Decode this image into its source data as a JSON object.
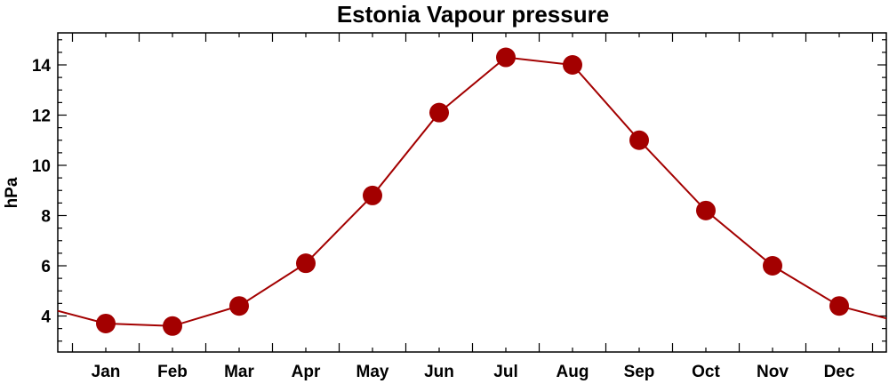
{
  "chart_data": {
    "type": "line",
    "title": "Estonia Vapour pressure",
    "xlabel": "",
    "ylabel": "hPa",
    "categories": [
      "Jan",
      "Feb",
      "Mar",
      "Apr",
      "May",
      "Jun",
      "Jul",
      "Aug",
      "Sep",
      "Oct",
      "Nov",
      "Dec"
    ],
    "series": [
      {
        "values": [
          3.7,
          3.6,
          4.4,
          6.1,
          8.8,
          12.1,
          14.3,
          14.0,
          11.0,
          8.2,
          6.0,
          4.4
        ]
      }
    ],
    "yticks": [
      4,
      6,
      8,
      10,
      12,
      14
    ],
    "ylim": [
      2.5,
      15.3
    ],
    "grid": false,
    "legend": "none",
    "colors": {
      "series": "#a30000",
      "axes": "#000000"
    }
  }
}
